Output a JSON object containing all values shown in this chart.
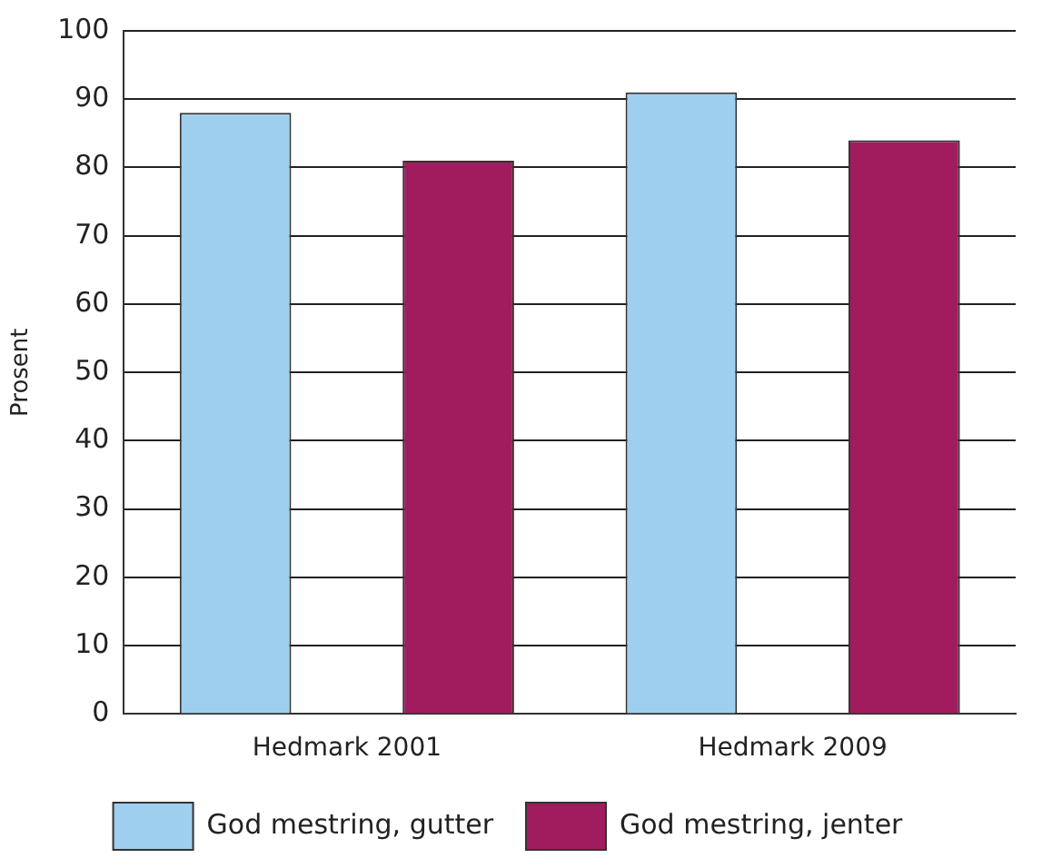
{
  "chart_data": {
    "type": "bar",
    "ylabel": "Prosent",
    "categories": [
      "Hedmark 2001",
      "Hedmark 2009"
    ],
    "series": [
      {
        "name": "God mestring, gutter",
        "color": "#9fcfee",
        "values": [
          88,
          91
        ]
      },
      {
        "name": "God mestring, jenter",
        "color": "#a01c5f",
        "values": [
          81,
          84
        ]
      }
    ],
    "ylim": [
      0,
      100
    ],
    "yticks": [
      0,
      10,
      20,
      30,
      40,
      50,
      60,
      70,
      80,
      90,
      100
    ],
    "grid": "y",
    "legend": "bottom"
  }
}
